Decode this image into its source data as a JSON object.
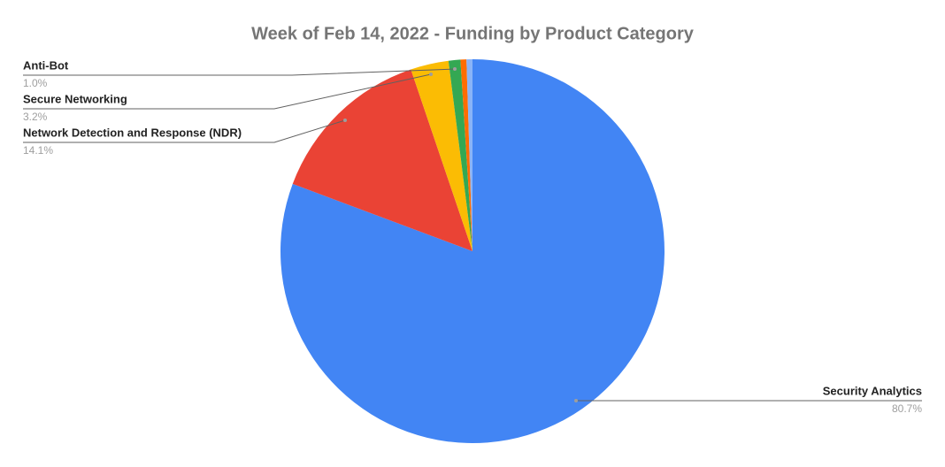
{
  "chart_data": {
    "type": "pie",
    "title": "Week of Feb 14, 2022 - Funding by Product Category",
    "categories": [
      "Security Analytics",
      "Network Detection and Response (NDR)",
      "Secure Networking",
      "Anti-Bot",
      null,
      null
    ],
    "values": [
      80.7,
      14.1,
      3.2,
      1.0,
      0.5,
      0.5
    ],
    "value_labels": [
      "80.7%",
      "14.1%",
      "3.2%",
      "1.0%",
      null,
      null
    ],
    "colors": [
      "#4285f4",
      "#ea4335",
      "#fbbc04",
      "#34a853",
      "#ff6d01",
      "#8ab4f8"
    ]
  }
}
